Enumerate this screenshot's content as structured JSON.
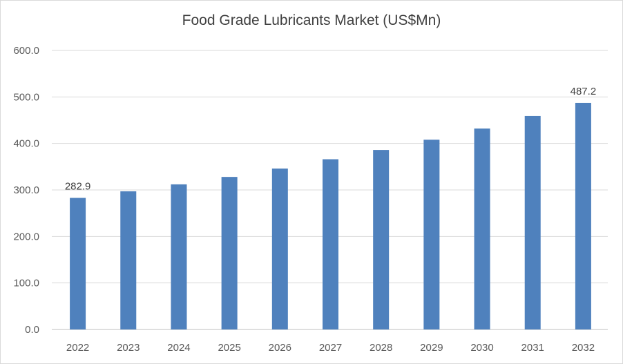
{
  "chart_data": {
    "type": "bar",
    "title": "Food Grade Lubricants Market (US$Mn)",
    "xlabel": "",
    "ylabel": "",
    "categories": [
      "2022",
      "2023",
      "2024",
      "2025",
      "2026",
      "2027",
      "2028",
      "2029",
      "2030",
      "2031",
      "2032"
    ],
    "values": [
      282.9,
      297.0,
      312.0,
      328.0,
      346.0,
      366.0,
      386.0,
      408.0,
      432.0,
      459.0,
      487.2
    ],
    "data_labels": [
      {
        "index": 0,
        "text": "282.9"
      },
      {
        "index": 10,
        "text": "487.2"
      }
    ],
    "ylim": [
      0,
      600
    ],
    "yticks": [
      "0.0",
      "100.0",
      "200.0",
      "300.0",
      "400.0",
      "500.0",
      "600.0"
    ],
    "grid": true,
    "legend": "none",
    "colors": {
      "bar": "#4f81bd",
      "grid": "#d9d9d9",
      "axis": "#bfbfbf",
      "text": "#595959",
      "title": "#404040"
    }
  }
}
